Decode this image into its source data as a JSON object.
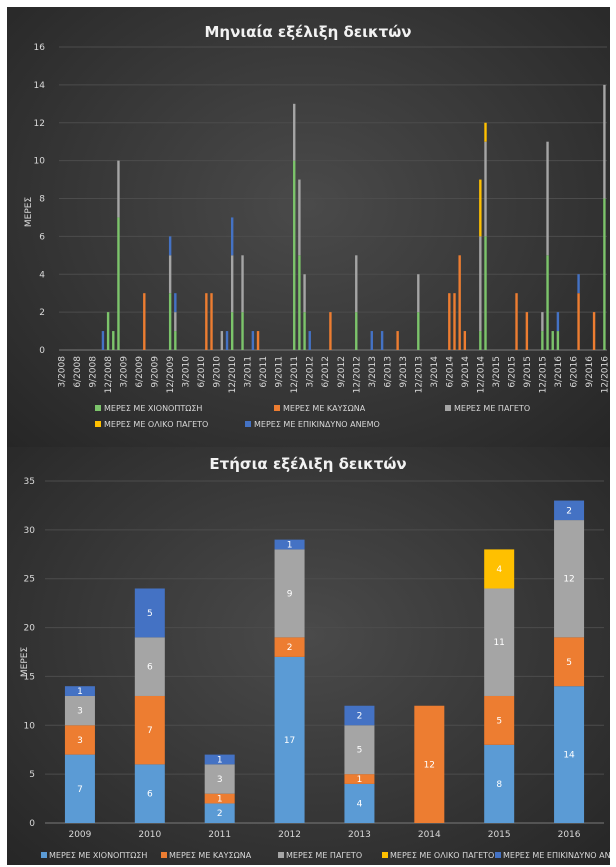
{
  "colors": {
    "snow": "#7cc46b",
    "heat": "#ed7d31",
    "frost": "#a5a5a5",
    "total_frost": "#ffc000",
    "wind": "#4472c4",
    "snow_bar": "#5b9bd5"
  },
  "chart_data": [
    {
      "type": "bar",
      "title": "Μηνιαία εξέλιξη δεικτών",
      "ylabel": "ΜΕΡΕΣ",
      "ylim": [
        0,
        16
      ],
      "yticks": [
        0,
        2,
        4,
        6,
        8,
        10,
        12,
        14,
        16
      ],
      "xticks": [
        "3/2008",
        "6/2008",
        "9/2008",
        "12/2008",
        "3/2009",
        "6/2009",
        "9/2009",
        "12/2009",
        "3/2010",
        "6/2010",
        "9/2010",
        "12/2010",
        "3/2011",
        "6/2011",
        "9/2011",
        "12/2011",
        "3/2012",
        "6/2012",
        "9/2012",
        "12/2012",
        "3/2013",
        "6/2013",
        "9/2013",
        "12/2013",
        "3/2014",
        "6/2014",
        "9/2014",
        "12/2014",
        "3/2015",
        "6/2015",
        "9/2015",
        "12/2015",
        "3/2016",
        "6/2016",
        "9/2016",
        "12/2016"
      ],
      "series": [
        {
          "name": "ΜΕΡΕΣ ΜΕ ΧΙΟΝΟΠΤΩΣΗ",
          "color_key": "snow",
          "points": [
            [
              "12/2008",
              2
            ],
            [
              "1/2009",
              1
            ],
            [
              "2/2009",
              7
            ],
            [
              "12/2009",
              3
            ],
            [
              "1/2010",
              1
            ],
            [
              "12/2010",
              2
            ],
            [
              "2/2011",
              2
            ],
            [
              "12/2011",
              10
            ],
            [
              "1/2012",
              5
            ],
            [
              "2/2012",
              2
            ],
            [
              "12/2012",
              2
            ],
            [
              "12/2013",
              2
            ],
            [
              "12/2014",
              1
            ],
            [
              "1/2015",
              6
            ],
            [
              "12/2015",
              1
            ],
            [
              "1/2016",
              5
            ],
            [
              "2/2016",
              1
            ],
            [
              "3/2016",
              1
            ],
            [
              "12/2016",
              8
            ]
          ]
        },
        {
          "name": "ΜΕΡΕΣ ΜΕ ΚΑΥΣΩΝΑ",
          "color_key": "heat",
          "points": [
            [
              "7/2009",
              3
            ],
            [
              "7/2010",
              3
            ],
            [
              "8/2010",
              3
            ],
            [
              "5/2011",
              1
            ],
            [
              "7/2012",
              2
            ],
            [
              "8/2013",
              1
            ],
            [
              "6/2014",
              3
            ],
            [
              "7/2014",
              3
            ],
            [
              "8/2014",
              5
            ],
            [
              "9/2014",
              1
            ],
            [
              "7/2015",
              3
            ],
            [
              "9/2015",
              2
            ],
            [
              "7/2016",
              3
            ],
            [
              "10/2016",
              2
            ]
          ]
        },
        {
          "name": "ΜΕΡΕΣ ΜΕ ΠΑΓΕΤΟ",
          "color_key": "frost",
          "points": [
            [
              "2/2009",
              3
            ],
            [
              "12/2009",
              2
            ],
            [
              "1/2010",
              1
            ],
            [
              "10/2010",
              1
            ],
            [
              "12/2010",
              3
            ],
            [
              "2/2011",
              3
            ],
            [
              "12/2011",
              3
            ],
            [
              "1/2012",
              4
            ],
            [
              "2/2012",
              2
            ],
            [
              "12/2012",
              3
            ],
            [
              "12/2013",
              2
            ],
            [
              "12/2014",
              5
            ],
            [
              "1/2015",
              5
            ],
            [
              "12/2015",
              1
            ],
            [
              "1/2016",
              6
            ],
            [
              "12/2016",
              6
            ]
          ]
        },
        {
          "name": "ΜΕΡΕΣ ΜΕ ΟΛΙΚΟ ΠΑΓΕΤΟ",
          "color_key": "total_frost",
          "points": [
            [
              "12/2014",
              3
            ],
            [
              "1/2015",
              1
            ]
          ]
        },
        {
          "name": "ΜΕΡΕΣ ΜΕ ΕΠΙΚΙΝΔΥΝΟ ΑΝΕΜΟ",
          "color_key": "wind",
          "points": [
            [
              "11/2008",
              1
            ],
            [
              "12/2009",
              1
            ],
            [
              "1/2010",
              1
            ],
            [
              "11/2010",
              1
            ],
            [
              "12/2010",
              2
            ],
            [
              "4/2011",
              1
            ],
            [
              "3/2012",
              1
            ],
            [
              "3/2013",
              1
            ],
            [
              "5/2013",
              1
            ],
            [
              "3/2016",
              1
            ],
            [
              "7/2016",
              1
            ]
          ]
        }
      ]
    },
    {
      "type": "bar",
      "title": "Ετήσια εξέλιξη δεικτών",
      "ylabel": "ΜΕΡΕΣ",
      "ylim": [
        0,
        35
      ],
      "yticks": [
        0,
        5,
        10,
        15,
        20,
        25,
        30,
        35
      ],
      "categories": [
        "2009",
        "2010",
        "2011",
        "2012",
        "2013",
        "2014",
        "2015",
        "2016"
      ],
      "series": [
        {
          "name": "ΜΕΡΕΣ ΜΕ ΧΙΟΝΟΠΤΩΣΗ",
          "color_key": "snow_bar",
          "values": [
            7,
            6,
            2,
            17,
            4,
            0,
            8,
            14
          ]
        },
        {
          "name": "ΜΕΡΕΣ ΜΕ ΚΑΥΣΩΝΑ",
          "color_key": "heat",
          "values": [
            3,
            7,
            1,
            2,
            1,
            12,
            5,
            5
          ]
        },
        {
          "name": "ΜΕΡΕΣ ΜΕ ΠΑΓΕΤΟ",
          "color_key": "frost",
          "values": [
            3,
            6,
            3,
            9,
            5,
            0,
            11,
            12
          ]
        },
        {
          "name": "ΜΕΡΕΣ ΜΕ ΟΛΙΚΟ ΠΑΓΕΤΟ",
          "color_key": "total_frost",
          "values": [
            0,
            0,
            0,
            0,
            0,
            0,
            4,
            0
          ]
        },
        {
          "name": "ΜΕΡΕΣ ΜΕ ΕΠΙΚΙΝΔΥΝΟ ΑΝΕΜΟ",
          "color_key": "wind",
          "values": [
            1,
            5,
            1,
            1,
            2,
            0,
            0,
            2
          ]
        }
      ]
    }
  ]
}
